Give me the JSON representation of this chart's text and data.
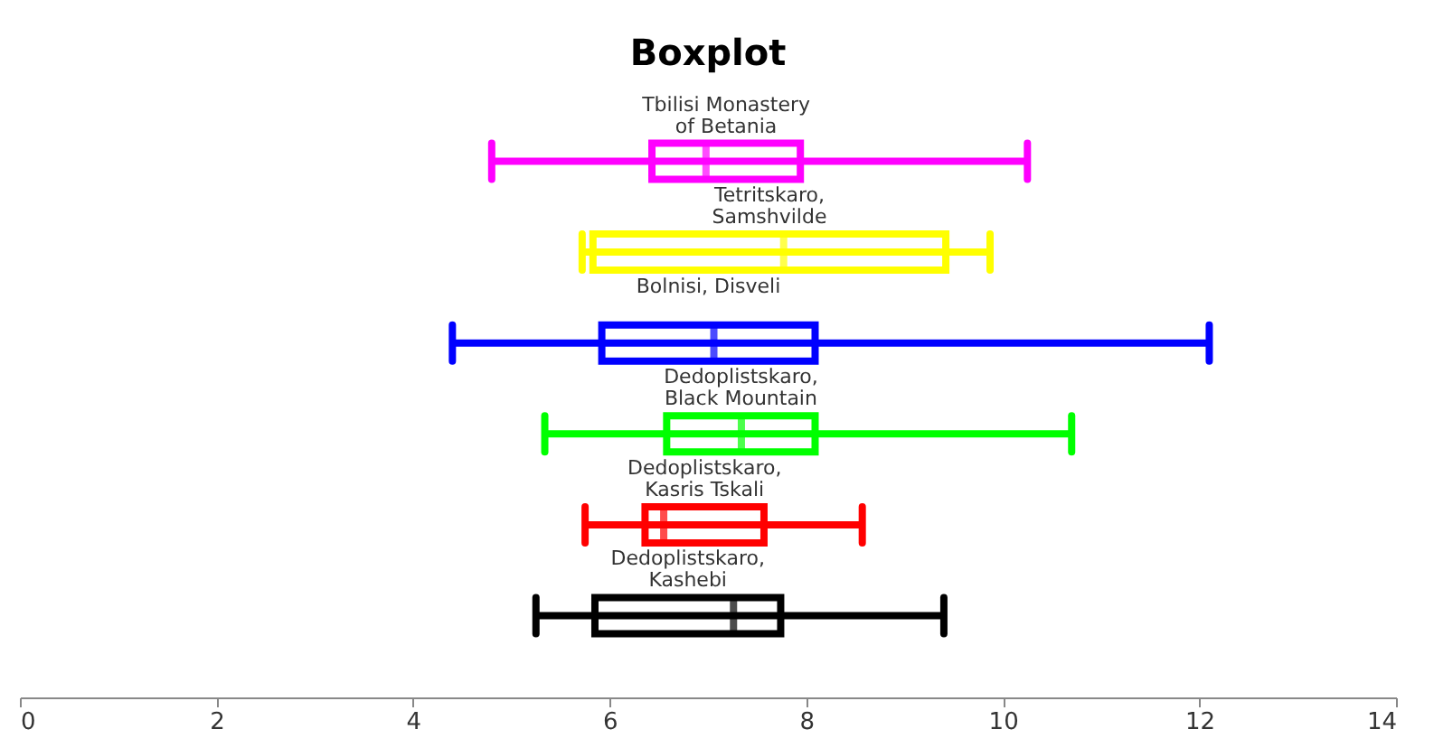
{
  "chart_data": {
    "type": "box",
    "orientation": "horizontal",
    "title": "Boxplot",
    "categories": [
      "Tbilisi Monastery of Betania",
      "Tetritskaro, Samshvilde",
      "Bolnisi, Disveli",
      "Dedoplistskaro, Black Mountain",
      "Dedoplistskaro, Kasris Tskali",
      "Dedoplistskaro, Kashebi"
    ],
    "colors": [
      "#ff00ff",
      "#ffff00",
      "#0000ff",
      "#00ff00",
      "#ff0000",
      "#000000"
    ],
    "boxes": [
      {
        "low": 4.8,
        "q1": 6.43,
        "median": 6.98,
        "q3": 7.94,
        "high": 10.25
      },
      {
        "low": 5.72,
        "q1": 5.83,
        "median": 7.77,
        "q3": 9.42,
        "high": 9.87
      },
      {
        "low": 4.4,
        "q1": 5.92,
        "median": 7.06,
        "q3": 8.09,
        "high": 12.1
      },
      {
        "low": 5.34,
        "q1": 6.58,
        "median": 7.34,
        "q3": 8.09,
        "high": 10.7
      },
      {
        "low": 5.75,
        "q1": 6.36,
        "median": 6.55,
        "q3": 7.57,
        "high": 8.57
      },
      {
        "low": 5.25,
        "q1": 5.85,
        "median": 7.26,
        "q3": 7.74,
        "high": 9.4
      }
    ],
    "xlim": [
      0,
      14
    ],
    "xticks": [
      0,
      2,
      4,
      6,
      8,
      10,
      12,
      14
    ],
    "grid": false
  }
}
